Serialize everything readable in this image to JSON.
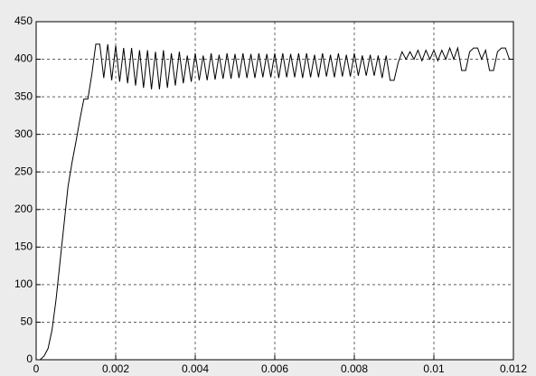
{
  "chart_data": {
    "type": "line",
    "x": [
      0,
      0.0001,
      0.0002,
      0.0003,
      0.0004,
      0.0005,
      0.0006,
      0.0007,
      0.0008,
      0.0009,
      0.001,
      0.0011,
      0.0012,
      0.0013,
      0.0014,
      0.0015,
      0.0016,
      0.0017,
      0.0018,
      0.0019,
      0.002,
      0.0021,
      0.0022,
      0.0023,
      0.0024,
      0.0025,
      0.0026,
      0.0027,
      0.0028,
      0.0029,
      0.003,
      0.0031,
      0.0032,
      0.0033,
      0.0034,
      0.0035,
      0.0036,
      0.0037,
      0.0038,
      0.0039,
      0.004,
      0.0041,
      0.0042,
      0.0043,
      0.0044,
      0.0045,
      0.0046,
      0.0047,
      0.0048,
      0.0049,
      0.005,
      0.0051,
      0.0052,
      0.0053,
      0.0054,
      0.0055,
      0.0056,
      0.0057,
      0.0058,
      0.0059,
      0.006,
      0.0061,
      0.0062,
      0.0063,
      0.0064,
      0.0065,
      0.0066,
      0.0067,
      0.0068,
      0.0069,
      0.007,
      0.0071,
      0.0072,
      0.0073,
      0.0074,
      0.0075,
      0.0076,
      0.0077,
      0.0078,
      0.0079,
      0.008,
      0.0081,
      0.0082,
      0.0083,
      0.0084,
      0.0085,
      0.0086,
      0.0087,
      0.0088,
      0.0089,
      0.009,
      0.0091,
      0.0092,
      0.0093,
      0.0094,
      0.0095,
      0.0096,
      0.0097,
      0.0098,
      0.0099,
      0.01,
      0.0101,
      0.0102,
      0.0103,
      0.0104,
      0.0105,
      0.0106,
      0.0107,
      0.0108,
      0.0109,
      0.011,
      0.0111,
      0.0112,
      0.0113,
      0.0114,
      0.0115,
      0.0116,
      0.0117,
      0.0118,
      0.0119,
      0.012
    ],
    "series": [
      {
        "color": "#000000",
        "values": [
          0,
          0,
          5,
          15,
          40,
          80,
          130,
          180,
          230,
          262,
          290,
          320,
          347,
          347,
          380,
          420,
          420,
          375,
          420,
          372,
          418,
          370,
          415,
          368,
          415,
          365,
          412,
          362,
          412,
          360,
          410,
          360,
          412,
          362,
          408,
          365,
          410,
          368,
          405,
          370,
          408,
          372,
          405,
          372,
          408,
          373,
          406,
          374,
          408,
          374,
          407,
          375,
          408,
          375,
          407,
          375,
          408,
          376,
          407,
          376,
          408,
          375,
          408,
          376,
          407,
          376,
          408,
          375,
          408,
          376,
          406,
          376,
          408,
          377,
          406,
          376,
          408,
          377,
          406,
          377,
          408,
          378,
          405,
          378,
          406,
          378,
          405,
          375,
          405,
          372,
          372,
          395,
          410,
          400,
          410,
          400,
          412,
          398,
          412,
          400,
          412,
          398,
          412,
          400,
          415,
          400,
          415,
          385,
          385,
          410,
          415,
          415,
          400,
          412,
          385,
          385,
          410,
          415,
          415,
          400,
          400
        ]
      }
    ],
    "xlim": [
      0,
      0.012
    ],
    "ylim": [
      0,
      450
    ],
    "xticks": [
      0,
      0.002,
      0.004,
      0.006,
      0.008,
      0.01,
      0.012
    ],
    "yticks": [
      0,
      50,
      100,
      150,
      200,
      250,
      300,
      350,
      400,
      450
    ],
    "grid": true
  }
}
